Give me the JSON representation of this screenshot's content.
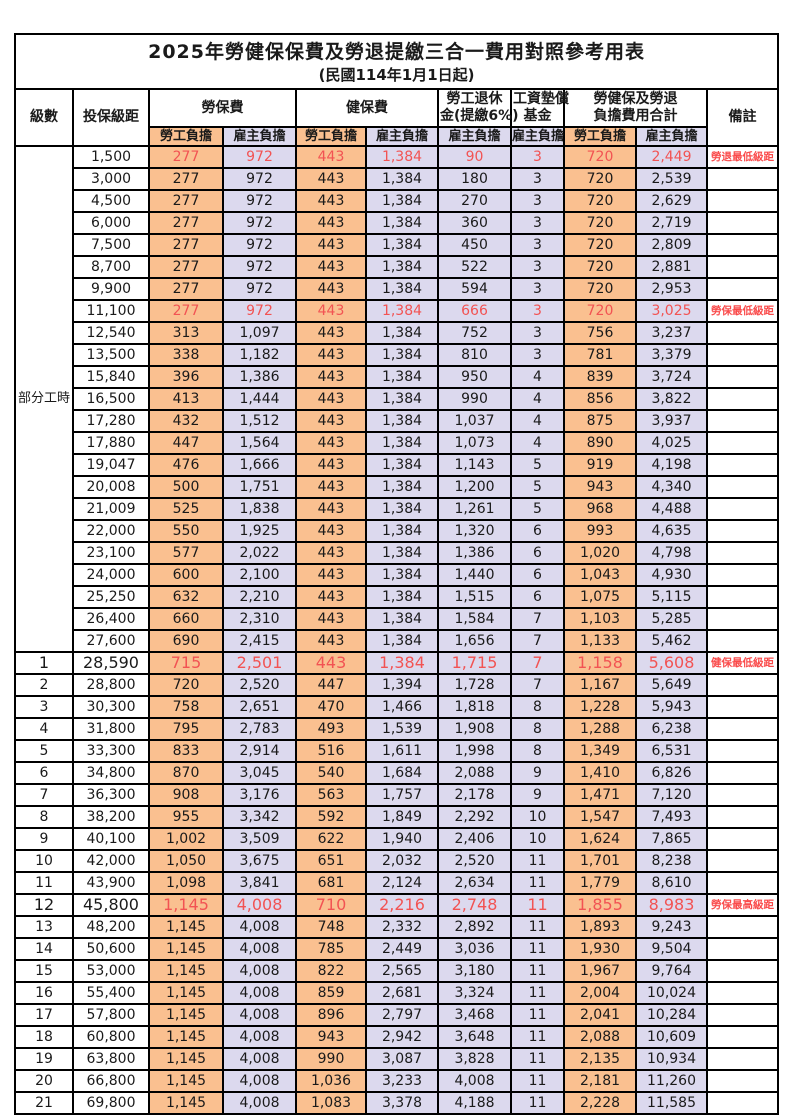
{
  "title": "2025年勞健保保費及勞退提繳三合一費用對照參考用表",
  "subtitle": "(民國114年1月1日起)",
  "colors": {
    "employee_bg": "#FAC090",
    "employer_bg": "#DCD9EE",
    "highlight_text": "#F25353",
    "note_text": "#FA4B4B",
    "border": "#000000"
  },
  "header": {
    "level": "級數",
    "bracket": "投保級距",
    "labor_insurance": "勞保費",
    "health_insurance": "健保費",
    "pension_line1": "勞工退休",
    "pension_line2": "金(提繳6%)",
    "wage_fund_line1": "工資墊償",
    "wage_fund_line2": "基金",
    "total_line1": "勞健保及勞退",
    "total_line2": "負擔費用合計",
    "employee": "勞工負擔",
    "employer": "雇主負擔",
    "note": "備註"
  },
  "part_time_label": "部分工時",
  "part_time_row_span": 23,
  "rows": [
    {
      "level": "",
      "bracket": "1,500",
      "li_emp": "277",
      "li_er": "972",
      "hi_emp": "443",
      "hi_er": "1,384",
      "pension": "90",
      "fund": "3",
      "sum_emp": "720",
      "sum_er": "2,449",
      "note": "勞退最低級距",
      "hl": true,
      "big": false
    },
    {
      "level": "",
      "bracket": "3,000",
      "li_emp": "277",
      "li_er": "972",
      "hi_emp": "443",
      "hi_er": "1,384",
      "pension": "180",
      "fund": "3",
      "sum_emp": "720",
      "sum_er": "2,539",
      "note": "",
      "hl": false,
      "big": false
    },
    {
      "level": "",
      "bracket": "4,500",
      "li_emp": "277",
      "li_er": "972",
      "hi_emp": "443",
      "hi_er": "1,384",
      "pension": "270",
      "fund": "3",
      "sum_emp": "720",
      "sum_er": "2,629",
      "note": "",
      "hl": false,
      "big": false
    },
    {
      "level": "",
      "bracket": "6,000",
      "li_emp": "277",
      "li_er": "972",
      "hi_emp": "443",
      "hi_er": "1,384",
      "pension": "360",
      "fund": "3",
      "sum_emp": "720",
      "sum_er": "2,719",
      "note": "",
      "hl": false,
      "big": false
    },
    {
      "level": "",
      "bracket": "7,500",
      "li_emp": "277",
      "li_er": "972",
      "hi_emp": "443",
      "hi_er": "1,384",
      "pension": "450",
      "fund": "3",
      "sum_emp": "720",
      "sum_er": "2,809",
      "note": "",
      "hl": false,
      "big": false
    },
    {
      "level": "",
      "bracket": "8,700",
      "li_emp": "277",
      "li_er": "972",
      "hi_emp": "443",
      "hi_er": "1,384",
      "pension": "522",
      "fund": "3",
      "sum_emp": "720",
      "sum_er": "2,881",
      "note": "",
      "hl": false,
      "big": false
    },
    {
      "level": "",
      "bracket": "9,900",
      "li_emp": "277",
      "li_er": "972",
      "hi_emp": "443",
      "hi_er": "1,384",
      "pension": "594",
      "fund": "3",
      "sum_emp": "720",
      "sum_er": "2,953",
      "note": "",
      "hl": false,
      "big": false
    },
    {
      "level": "",
      "bracket": "11,100",
      "li_emp": "277",
      "li_er": "972",
      "hi_emp": "443",
      "hi_er": "1,384",
      "pension": "666",
      "fund": "3",
      "sum_emp": "720",
      "sum_er": "3,025",
      "note": "勞保最低級距",
      "hl": true,
      "big": false
    },
    {
      "level": "",
      "bracket": "12,540",
      "li_emp": "313",
      "li_er": "1,097",
      "hi_emp": "443",
      "hi_er": "1,384",
      "pension": "752",
      "fund": "3",
      "sum_emp": "756",
      "sum_er": "3,237",
      "note": "",
      "hl": false,
      "big": false
    },
    {
      "level": "",
      "bracket": "13,500",
      "li_emp": "338",
      "li_er": "1,182",
      "hi_emp": "443",
      "hi_er": "1,384",
      "pension": "810",
      "fund": "3",
      "sum_emp": "781",
      "sum_er": "3,379",
      "note": "",
      "hl": false,
      "big": false
    },
    {
      "level": "",
      "bracket": "15,840",
      "li_emp": "396",
      "li_er": "1,386",
      "hi_emp": "443",
      "hi_er": "1,384",
      "pension": "950",
      "fund": "4",
      "sum_emp": "839",
      "sum_er": "3,724",
      "note": "",
      "hl": false,
      "big": false
    },
    {
      "level": "",
      "bracket": "16,500",
      "li_emp": "413",
      "li_er": "1,444",
      "hi_emp": "443",
      "hi_er": "1,384",
      "pension": "990",
      "fund": "4",
      "sum_emp": "856",
      "sum_er": "3,822",
      "note": "",
      "hl": false,
      "big": false
    },
    {
      "level": "",
      "bracket": "17,280",
      "li_emp": "432",
      "li_er": "1,512",
      "hi_emp": "443",
      "hi_er": "1,384",
      "pension": "1,037",
      "fund": "4",
      "sum_emp": "875",
      "sum_er": "3,937",
      "note": "",
      "hl": false,
      "big": false
    },
    {
      "level": "",
      "bracket": "17,880",
      "li_emp": "447",
      "li_er": "1,564",
      "hi_emp": "443",
      "hi_er": "1,384",
      "pension": "1,073",
      "fund": "4",
      "sum_emp": "890",
      "sum_er": "4,025",
      "note": "",
      "hl": false,
      "big": false
    },
    {
      "level": "",
      "bracket": "19,047",
      "li_emp": "476",
      "li_er": "1,666",
      "hi_emp": "443",
      "hi_er": "1,384",
      "pension": "1,143",
      "fund": "5",
      "sum_emp": "919",
      "sum_er": "4,198",
      "note": "",
      "hl": false,
      "big": false
    },
    {
      "level": "",
      "bracket": "20,008",
      "li_emp": "500",
      "li_er": "1,751",
      "hi_emp": "443",
      "hi_er": "1,384",
      "pension": "1,200",
      "fund": "5",
      "sum_emp": "943",
      "sum_er": "4,340",
      "note": "",
      "hl": false,
      "big": false
    },
    {
      "level": "",
      "bracket": "21,009",
      "li_emp": "525",
      "li_er": "1,838",
      "hi_emp": "443",
      "hi_er": "1,384",
      "pension": "1,261",
      "fund": "5",
      "sum_emp": "968",
      "sum_er": "4,488",
      "note": "",
      "hl": false,
      "big": false
    },
    {
      "level": "",
      "bracket": "22,000",
      "li_emp": "550",
      "li_er": "1,925",
      "hi_emp": "443",
      "hi_er": "1,384",
      "pension": "1,320",
      "fund": "6",
      "sum_emp": "993",
      "sum_er": "4,635",
      "note": "",
      "hl": false,
      "big": false
    },
    {
      "level": "",
      "bracket": "23,100",
      "li_emp": "577",
      "li_er": "2,022",
      "hi_emp": "443",
      "hi_er": "1,384",
      "pension": "1,386",
      "fund": "6",
      "sum_emp": "1,020",
      "sum_er": "4,798",
      "note": "",
      "hl": false,
      "big": false
    },
    {
      "level": "",
      "bracket": "24,000",
      "li_emp": "600",
      "li_er": "2,100",
      "hi_emp": "443",
      "hi_er": "1,384",
      "pension": "1,440",
      "fund": "6",
      "sum_emp": "1,043",
      "sum_er": "4,930",
      "note": "",
      "hl": false,
      "big": false
    },
    {
      "level": "",
      "bracket": "25,250",
      "li_emp": "632",
      "li_er": "2,210",
      "hi_emp": "443",
      "hi_er": "1,384",
      "pension": "1,515",
      "fund": "6",
      "sum_emp": "1,075",
      "sum_er": "5,115",
      "note": "",
      "hl": false,
      "big": false
    },
    {
      "level": "",
      "bracket": "26,400",
      "li_emp": "660",
      "li_er": "2,310",
      "hi_emp": "443",
      "hi_er": "1,384",
      "pension": "1,584",
      "fund": "7",
      "sum_emp": "1,103",
      "sum_er": "5,285",
      "note": "",
      "hl": false,
      "big": false
    },
    {
      "level": "",
      "bracket": "27,600",
      "li_emp": "690",
      "li_er": "2,415",
      "hi_emp": "443",
      "hi_er": "1,384",
      "pension": "1,656",
      "fund": "7",
      "sum_emp": "1,133",
      "sum_er": "5,462",
      "note": "",
      "hl": false,
      "big": false
    },
    {
      "level": "1",
      "bracket": "28,590",
      "li_emp": "715",
      "li_er": "2,501",
      "hi_emp": "443",
      "hi_er": "1,384",
      "pension": "1,715",
      "fund": "7",
      "sum_emp": "1,158",
      "sum_er": "5,608",
      "note": "健保最低級距",
      "hl": true,
      "big": true
    },
    {
      "level": "2",
      "bracket": "28,800",
      "li_emp": "720",
      "li_er": "2,520",
      "hi_emp": "447",
      "hi_er": "1,394",
      "pension": "1,728",
      "fund": "7",
      "sum_emp": "1,167",
      "sum_er": "5,649",
      "note": "",
      "hl": false,
      "big": false
    },
    {
      "level": "3",
      "bracket": "30,300",
      "li_emp": "758",
      "li_er": "2,651",
      "hi_emp": "470",
      "hi_er": "1,466",
      "pension": "1,818",
      "fund": "8",
      "sum_emp": "1,228",
      "sum_er": "5,943",
      "note": "",
      "hl": false,
      "big": false
    },
    {
      "level": "4",
      "bracket": "31,800",
      "li_emp": "795",
      "li_er": "2,783",
      "hi_emp": "493",
      "hi_er": "1,539",
      "pension": "1,908",
      "fund": "8",
      "sum_emp": "1,288",
      "sum_er": "6,238",
      "note": "",
      "hl": false,
      "big": false
    },
    {
      "level": "5",
      "bracket": "33,300",
      "li_emp": "833",
      "li_er": "2,914",
      "hi_emp": "516",
      "hi_er": "1,611",
      "pension": "1,998",
      "fund": "8",
      "sum_emp": "1,349",
      "sum_er": "6,531",
      "note": "",
      "hl": false,
      "big": false
    },
    {
      "level": "6",
      "bracket": "34,800",
      "li_emp": "870",
      "li_er": "3,045",
      "hi_emp": "540",
      "hi_er": "1,684",
      "pension": "2,088",
      "fund": "9",
      "sum_emp": "1,410",
      "sum_er": "6,826",
      "note": "",
      "hl": false,
      "big": false
    },
    {
      "level": "7",
      "bracket": "36,300",
      "li_emp": "908",
      "li_er": "3,176",
      "hi_emp": "563",
      "hi_er": "1,757",
      "pension": "2,178",
      "fund": "9",
      "sum_emp": "1,471",
      "sum_er": "7,120",
      "note": "",
      "hl": false,
      "big": false
    },
    {
      "level": "8",
      "bracket": "38,200",
      "li_emp": "955",
      "li_er": "3,342",
      "hi_emp": "592",
      "hi_er": "1,849",
      "pension": "2,292",
      "fund": "10",
      "sum_emp": "1,547",
      "sum_er": "7,493",
      "note": "",
      "hl": false,
      "big": false
    },
    {
      "level": "9",
      "bracket": "40,100",
      "li_emp": "1,002",
      "li_er": "3,509",
      "hi_emp": "622",
      "hi_er": "1,940",
      "pension": "2,406",
      "fund": "10",
      "sum_emp": "1,624",
      "sum_er": "7,865",
      "note": "",
      "hl": false,
      "big": false
    },
    {
      "level": "10",
      "bracket": "42,000",
      "li_emp": "1,050",
      "li_er": "3,675",
      "hi_emp": "651",
      "hi_er": "2,032",
      "pension": "2,520",
      "fund": "11",
      "sum_emp": "1,701",
      "sum_er": "8,238",
      "note": "",
      "hl": false,
      "big": false
    },
    {
      "level": "11",
      "bracket": "43,900",
      "li_emp": "1,098",
      "li_er": "3,841",
      "hi_emp": "681",
      "hi_er": "2,124",
      "pension": "2,634",
      "fund": "11",
      "sum_emp": "1,779",
      "sum_er": "8,610",
      "note": "",
      "hl": false,
      "big": false
    },
    {
      "level": "12",
      "bracket": "45,800",
      "li_emp": "1,145",
      "li_er": "4,008",
      "hi_emp": "710",
      "hi_er": "2,216",
      "pension": "2,748",
      "fund": "11",
      "sum_emp": "1,855",
      "sum_er": "8,983",
      "note": "勞保最高級距",
      "hl": true,
      "big": true
    },
    {
      "level": "13",
      "bracket": "48,200",
      "li_emp": "1,145",
      "li_er": "4,008",
      "hi_emp": "748",
      "hi_er": "2,332",
      "pension": "2,892",
      "fund": "11",
      "sum_emp": "1,893",
      "sum_er": "9,243",
      "note": "",
      "hl": false,
      "big": false
    },
    {
      "level": "14",
      "bracket": "50,600",
      "li_emp": "1,145",
      "li_er": "4,008",
      "hi_emp": "785",
      "hi_er": "2,449",
      "pension": "3,036",
      "fund": "11",
      "sum_emp": "1,930",
      "sum_er": "9,504",
      "note": "",
      "hl": false,
      "big": false
    },
    {
      "level": "15",
      "bracket": "53,000",
      "li_emp": "1,145",
      "li_er": "4,008",
      "hi_emp": "822",
      "hi_er": "2,565",
      "pension": "3,180",
      "fund": "11",
      "sum_emp": "1,967",
      "sum_er": "9,764",
      "note": "",
      "hl": false,
      "big": false
    },
    {
      "level": "16",
      "bracket": "55,400",
      "li_emp": "1,145",
      "li_er": "4,008",
      "hi_emp": "859",
      "hi_er": "2,681",
      "pension": "3,324",
      "fund": "11",
      "sum_emp": "2,004",
      "sum_er": "10,024",
      "note": "",
      "hl": false,
      "big": false
    },
    {
      "level": "17",
      "bracket": "57,800",
      "li_emp": "1,145",
      "li_er": "4,008",
      "hi_emp": "896",
      "hi_er": "2,797",
      "pension": "3,468",
      "fund": "11",
      "sum_emp": "2,041",
      "sum_er": "10,284",
      "note": "",
      "hl": false,
      "big": false
    },
    {
      "level": "18",
      "bracket": "60,800",
      "li_emp": "1,145",
      "li_er": "4,008",
      "hi_emp": "943",
      "hi_er": "2,942",
      "pension": "3,648",
      "fund": "11",
      "sum_emp": "2,088",
      "sum_er": "10,609",
      "note": "",
      "hl": false,
      "big": false
    },
    {
      "level": "19",
      "bracket": "63,800",
      "li_emp": "1,145",
      "li_er": "4,008",
      "hi_emp": "990",
      "hi_er": "3,087",
      "pension": "3,828",
      "fund": "11",
      "sum_emp": "2,135",
      "sum_er": "10,934",
      "note": "",
      "hl": false,
      "big": false
    },
    {
      "level": "20",
      "bracket": "66,800",
      "li_emp": "1,145",
      "li_er": "4,008",
      "hi_emp": "1,036",
      "hi_er": "3,233",
      "pension": "4,008",
      "fund": "11",
      "sum_emp": "2,181",
      "sum_er": "11,260",
      "note": "",
      "hl": false,
      "big": false
    },
    {
      "level": "21",
      "bracket": "69,800",
      "li_emp": "1,145",
      "li_er": "4,008",
      "hi_emp": "1,083",
      "hi_er": "3,378",
      "pension": "4,188",
      "fund": "11",
      "sum_emp": "2,228",
      "sum_er": "11,585",
      "note": "",
      "hl": false,
      "big": false
    }
  ]
}
